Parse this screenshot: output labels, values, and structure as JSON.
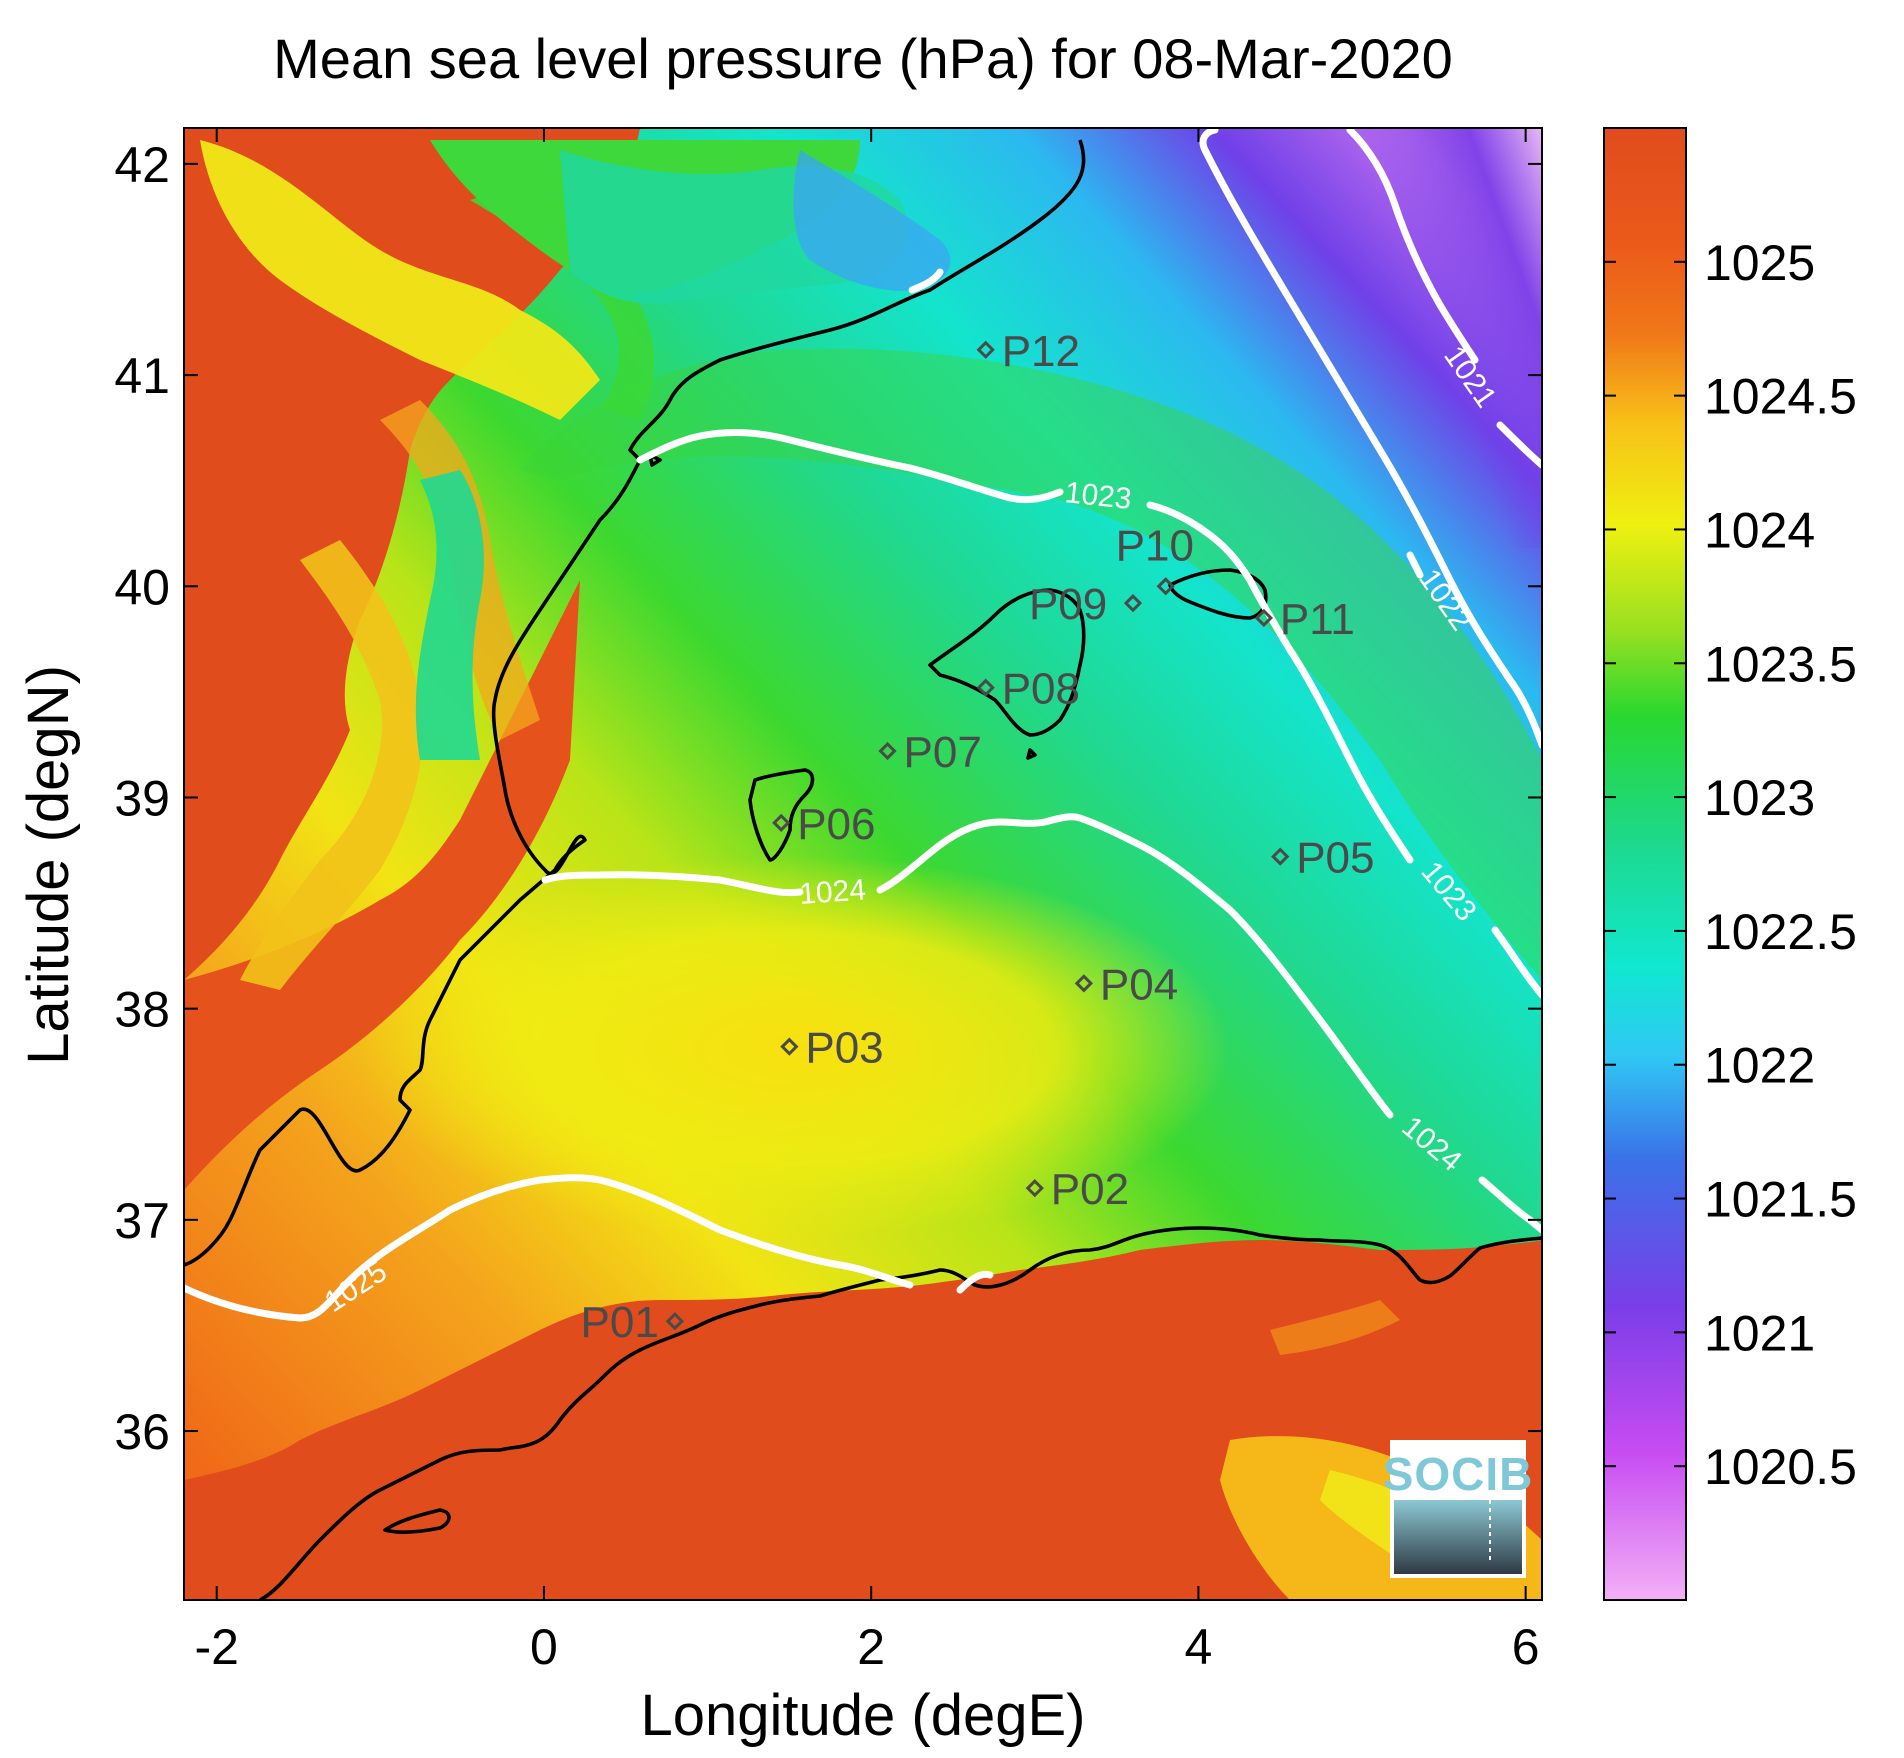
{
  "title": "Mean sea level pressure (hPa) for 08-Mar-2020",
  "xlabel": "Longitude (degE)",
  "ylabel": "Latitude (degN)",
  "x_ticks": [
    "-2",
    "0",
    "2",
    "4",
    "6"
  ],
  "y_ticks": [
    "42",
    "41",
    "40",
    "39",
    "38",
    "37",
    "36"
  ],
  "colorbar": {
    "ticks": [
      "1025",
      "1024.5",
      "1024",
      "1023.5",
      "1023",
      "1022.5",
      "1022",
      "1021.5",
      "1021",
      "1020.5"
    ],
    "range": [
      1020.0,
      1025.5
    ],
    "colors": [
      "#f2a8f4",
      "#c84cf2",
      "#7c3ee8",
      "#3a6ae8",
      "#30c8f0",
      "#10e8c8",
      "#1ed890",
      "#2ad830",
      "#9ae020",
      "#f0f010",
      "#f8b818",
      "#f06818",
      "#e04c1c"
    ]
  },
  "stations": [
    {
      "id": "P01",
      "label": "P01",
      "lon": 0.8,
      "lat": 36.52
    },
    {
      "id": "P02",
      "label": "P02",
      "lon": 3.0,
      "lat": 37.15
    },
    {
      "id": "P03",
      "label": "P03",
      "lon": 1.5,
      "lat": 37.82
    },
    {
      "id": "P04",
      "label": "P04",
      "lon": 3.3,
      "lat": 38.12
    },
    {
      "id": "P05",
      "label": "P05",
      "lon": 4.5,
      "lat": 38.72
    },
    {
      "id": "P06",
      "label": "P06",
      "lon": 1.45,
      "lat": 38.88
    },
    {
      "id": "P07",
      "label": "P07",
      "lon": 2.1,
      "lat": 39.22
    },
    {
      "id": "P08",
      "label": "P08",
      "lon": 2.7,
      "lat": 39.52
    },
    {
      "id": "P09",
      "label": "P09",
      "lon": 3.6,
      "lat": 39.92
    },
    {
      "id": "P10",
      "label": "P10",
      "lon": 3.8,
      "lat": 40.0
    },
    {
      "id": "P11",
      "label": "P11",
      "lon": 4.4,
      "lat": 39.85
    },
    {
      "id": "P12",
      "label": "P12",
      "lon": 2.7,
      "lat": 41.12
    }
  ],
  "contours": [
    {
      "level": "1025",
      "label": "1025"
    },
    {
      "level": "1024",
      "label": "1024"
    },
    {
      "level": "1024",
      "label": "1024"
    },
    {
      "level": "1023",
      "label": "1023"
    },
    {
      "level": "1023",
      "label": "1023"
    },
    {
      "level": "1022",
      "label": "1022"
    },
    {
      "level": "1021",
      "label": "1021"
    }
  ],
  "logo": {
    "text": "SOCIB"
  }
}
